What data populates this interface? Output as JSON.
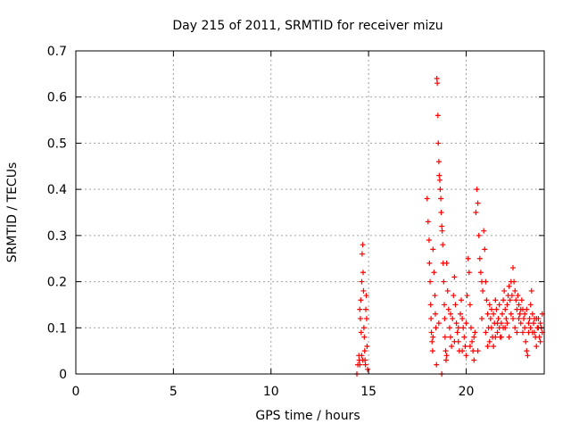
{
  "chart_data": {
    "type": "scatter",
    "title": "Day 215 of 2011, SRMTID for receiver mizu",
    "xlabel": "GPS time / hours",
    "ylabel": "SRMTID / TECUs",
    "xlim": [
      0,
      24
    ],
    "ylim": [
      0,
      0.7
    ],
    "xticks": [
      0,
      5,
      10,
      15,
      20
    ],
    "yticks": [
      0,
      0.1,
      0.2,
      0.3,
      0.4,
      0.5,
      0.6,
      0.7
    ],
    "grid": true,
    "marker": "+",
    "series": [
      {
        "name": "SRMTID",
        "color": "#ff0000",
        "points": [
          [
            14.4,
            0.0
          ],
          [
            14.45,
            0.02
          ],
          [
            14.5,
            0.04
          ],
          [
            14.52,
            0.03
          ],
          [
            14.55,
            0.14
          ],
          [
            14.58,
            0.12
          ],
          [
            14.6,
            0.16
          ],
          [
            14.62,
            0.09
          ],
          [
            14.65,
            0.2
          ],
          [
            14.67,
            0.26
          ],
          [
            14.7,
            0.28
          ],
          [
            14.72,
            0.22
          ],
          [
            14.74,
            0.18
          ],
          [
            14.76,
            0.1
          ],
          [
            14.78,
            0.08
          ],
          [
            14.8,
            0.05
          ],
          [
            14.82,
            0.03
          ],
          [
            14.84,
            0.02
          ],
          [
            14.86,
            0.14
          ],
          [
            14.88,
            0.17
          ],
          [
            14.9,
            0.12
          ],
          [
            14.92,
            0.06
          ],
          [
            14.95,
            0.01
          ],
          [
            14.65,
            0.04
          ],
          [
            14.7,
            0.03
          ],
          [
            14.55,
            0.02
          ],
          [
            18.0,
            0.38
          ],
          [
            18.05,
            0.33
          ],
          [
            18.1,
            0.29
          ],
          [
            18.12,
            0.24
          ],
          [
            18.15,
            0.2
          ],
          [
            18.18,
            0.15
          ],
          [
            18.2,
            0.12
          ],
          [
            18.22,
            0.09
          ],
          [
            18.25,
            0.07
          ],
          [
            18.28,
            0.05
          ],
          [
            18.3,
            0.27
          ],
          [
            18.35,
            0.22
          ],
          [
            18.4,
            0.17
          ],
          [
            18.42,
            0.13
          ],
          [
            18.45,
            0.1
          ],
          [
            18.48,
            0.02
          ],
          [
            18.5,
            0.64
          ],
          [
            18.52,
            0.63
          ],
          [
            18.55,
            0.56
          ],
          [
            18.57,
            0.5
          ],
          [
            18.6,
            0.46
          ],
          [
            18.62,
            0.43
          ],
          [
            18.65,
            0.42
          ],
          [
            18.67,
            0.4
          ],
          [
            18.7,
            0.38
          ],
          [
            18.72,
            0.35
          ],
          [
            18.75,
            0.32
          ],
          [
            18.77,
            0.31
          ],
          [
            18.8,
            0.28
          ],
          [
            18.82,
            0.24
          ],
          [
            18.85,
            0.2
          ],
          [
            18.88,
            0.15
          ],
          [
            18.9,
            0.12
          ],
          [
            18.92,
            0.08
          ],
          [
            18.95,
            0.05
          ],
          [
            18.97,
            0.03
          ],
          [
            18.75,
            0.0
          ],
          [
            19.0,
            0.24
          ],
          [
            19.05,
            0.18
          ],
          [
            19.1,
            0.14
          ],
          [
            19.15,
            0.1
          ],
          [
            19.2,
            0.08
          ],
          [
            19.25,
            0.06
          ],
          [
            19.3,
            0.12
          ],
          [
            19.35,
            0.17
          ],
          [
            19.4,
            0.21
          ],
          [
            19.45,
            0.15
          ],
          [
            19.5,
            0.11
          ],
          [
            19.55,
            0.09
          ],
          [
            19.6,
            0.07
          ],
          [
            19.65,
            0.05
          ],
          [
            19.7,
            0.13
          ],
          [
            19.75,
            0.16
          ],
          [
            19.8,
            0.12
          ],
          [
            19.85,
            0.1
          ],
          [
            19.9,
            0.08
          ],
          [
            19.95,
            0.06
          ],
          [
            20.0,
            0.04
          ],
          [
            20.05,
            0.17
          ],
          [
            20.1,
            0.25
          ],
          [
            20.15,
            0.22
          ],
          [
            20.2,
            0.15
          ],
          [
            20.25,
            0.1
          ],
          [
            20.3,
            0.07
          ],
          [
            20.35,
            0.05
          ],
          [
            20.4,
            0.03
          ],
          [
            20.45,
            0.09
          ],
          [
            20.5,
            0.35
          ],
          [
            20.55,
            0.4
          ],
          [
            20.6,
            0.37
          ],
          [
            20.65,
            0.3
          ],
          [
            20.7,
            0.25
          ],
          [
            20.75,
            0.22
          ],
          [
            20.8,
            0.2
          ],
          [
            20.85,
            0.18
          ],
          [
            20.9,
            0.31
          ],
          [
            20.95,
            0.27
          ],
          [
            21.0,
            0.2
          ],
          [
            21.05,
            0.16
          ],
          [
            21.1,
            0.13
          ],
          [
            21.15,
            0.1
          ],
          [
            21.2,
            0.15
          ],
          [
            21.25,
            0.12
          ],
          [
            21.3,
            0.1
          ],
          [
            21.35,
            0.08
          ],
          [
            21.4,
            0.13
          ],
          [
            21.45,
            0.11
          ],
          [
            21.5,
            0.16
          ],
          [
            21.55,
            0.14
          ],
          [
            21.6,
            0.09
          ],
          [
            21.65,
            0.12
          ],
          [
            21.7,
            0.1
          ],
          [
            21.75,
            0.08
          ],
          [
            21.8,
            0.11
          ],
          [
            21.85,
            0.13
          ],
          [
            21.9,
            0.16
          ],
          [
            21.95,
            0.18
          ],
          [
            22.0,
            0.14
          ],
          [
            22.05,
            0.12
          ],
          [
            22.1,
            0.15
          ],
          [
            22.15,
            0.17
          ],
          [
            22.2,
            0.19
          ],
          [
            22.25,
            0.16
          ],
          [
            22.3,
            0.2
          ],
          [
            22.35,
            0.17
          ],
          [
            22.4,
            0.23
          ],
          [
            22.45,
            0.2
          ],
          [
            22.5,
            0.18
          ],
          [
            22.55,
            0.16
          ],
          [
            22.6,
            0.14
          ],
          [
            22.65,
            0.17
          ],
          [
            22.7,
            0.15
          ],
          [
            22.75,
            0.13
          ],
          [
            22.8,
            0.11
          ],
          [
            22.85,
            0.16
          ],
          [
            22.9,
            0.14
          ],
          [
            22.95,
            0.12
          ],
          [
            23.0,
            0.1
          ],
          [
            23.05,
            0.07
          ],
          [
            23.1,
            0.05
          ],
          [
            23.15,
            0.04
          ],
          [
            23.2,
            0.09
          ],
          [
            23.25,
            0.12
          ],
          [
            23.3,
            0.15
          ],
          [
            23.35,
            0.18
          ],
          [
            23.4,
            0.13
          ],
          [
            23.45,
            0.11
          ],
          [
            23.5,
            0.09
          ],
          [
            23.55,
            0.08
          ],
          [
            23.6,
            0.06
          ],
          [
            23.65,
            0.1
          ],
          [
            23.7,
            0.12
          ],
          [
            23.75,
            0.08
          ],
          [
            23.8,
            0.07
          ],
          [
            23.85,
            0.1
          ],
          [
            23.9,
            0.09
          ],
          [
            18.3,
            0.08
          ],
          [
            18.6,
            0.11
          ],
          [
            19.0,
            0.04
          ],
          [
            19.2,
            0.13
          ],
          [
            19.4,
            0.07
          ],
          [
            19.6,
            0.1
          ],
          [
            19.8,
            0.05
          ],
          [
            20.0,
            0.11
          ],
          [
            20.2,
            0.06
          ],
          [
            20.4,
            0.08
          ],
          [
            20.6,
            0.05
          ],
          [
            20.8,
            0.12
          ],
          [
            21.0,
            0.09
          ],
          [
            21.2,
            0.07
          ],
          [
            21.4,
            0.06
          ],
          [
            21.6,
            0.11
          ],
          [
            21.8,
            0.08
          ],
          [
            22.0,
            0.1
          ],
          [
            22.2,
            0.08
          ],
          [
            22.4,
            0.12
          ],
          [
            22.6,
            0.09
          ],
          [
            22.8,
            0.14
          ],
          [
            23.0,
            0.13
          ],
          [
            23.2,
            0.11
          ],
          [
            23.4,
            0.09
          ],
          [
            23.6,
            0.12
          ],
          [
            23.8,
            0.11
          ],
          [
            21.1,
            0.06
          ],
          [
            21.3,
            0.14
          ],
          [
            21.5,
            0.08
          ],
          [
            21.7,
            0.15
          ],
          [
            21.9,
            0.1
          ],
          [
            22.1,
            0.11
          ],
          [
            22.3,
            0.13
          ],
          [
            22.5,
            0.1
          ],
          [
            22.7,
            0.12
          ],
          [
            22.9,
            0.09
          ],
          [
            23.1,
            0.14
          ],
          [
            23.3,
            0.1
          ],
          [
            23.5,
            0.12
          ],
          [
            23.7,
            0.1
          ],
          [
            23.9,
            0.13
          ]
        ]
      }
    ]
  }
}
